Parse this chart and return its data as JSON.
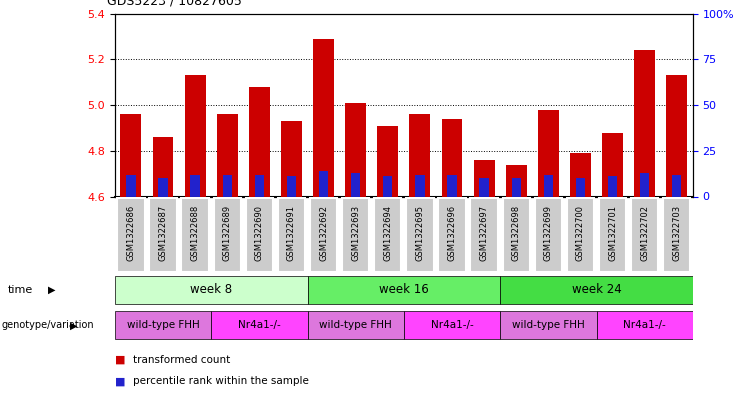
{
  "title": "GDS5223 / 10827605",
  "samples": [
    "GSM1322686",
    "GSM1322687",
    "GSM1322688",
    "GSM1322689",
    "GSM1322690",
    "GSM1322691",
    "GSM1322692",
    "GSM1322693",
    "GSM1322694",
    "GSM1322695",
    "GSM1322696",
    "GSM1322697",
    "GSM1322698",
    "GSM1322699",
    "GSM1322700",
    "GSM1322701",
    "GSM1322702",
    "GSM1322703"
  ],
  "transformed_count": [
    4.96,
    4.86,
    5.13,
    4.96,
    5.08,
    4.93,
    5.29,
    5.01,
    4.91,
    4.96,
    4.94,
    4.76,
    4.74,
    4.98,
    4.79,
    4.88,
    5.24,
    5.13
  ],
  "percentile_rank_pct": [
    12,
    10,
    12,
    12,
    12,
    11,
    14,
    13,
    11,
    12,
    12,
    10,
    10,
    12,
    10,
    11,
    13,
    12
  ],
  "ymin": 4.6,
  "ymax": 5.4,
  "yticks_left": [
    4.6,
    4.8,
    5.0,
    5.2,
    5.4
  ],
  "yticks_right": [
    0,
    25,
    50,
    75,
    100
  ],
  "bar_color": "#cc0000",
  "percentile_color": "#2222cc",
  "background_color": "#ffffff",
  "time_groups": [
    {
      "label": "week 8",
      "start": 0,
      "end": 6,
      "color": "#ccffcc"
    },
    {
      "label": "week 16",
      "start": 6,
      "end": 12,
      "color": "#66ee66"
    },
    {
      "label": "week 24",
      "start": 12,
      "end": 18,
      "color": "#44dd44"
    }
  ],
  "genotype_groups": [
    {
      "label": "wild-type FHH",
      "start": 0,
      "end": 3,
      "color": "#dd77dd"
    },
    {
      "label": "Nr4a1-/-",
      "start": 3,
      "end": 6,
      "color": "#ff44ff"
    },
    {
      "label": "wild-type FHH",
      "start": 6,
      "end": 9,
      "color": "#dd77dd"
    },
    {
      "label": "Nr4a1-/-",
      "start": 9,
      "end": 12,
      "color": "#ff44ff"
    },
    {
      "label": "wild-type FHH",
      "start": 12,
      "end": 15,
      "color": "#dd77dd"
    },
    {
      "label": "Nr4a1-/-",
      "start": 15,
      "end": 18,
      "color": "#ff44ff"
    }
  ],
  "legend_items": [
    {
      "label": "transformed count",
      "color": "#cc0000"
    },
    {
      "label": "percentile rank within the sample",
      "color": "#2222cc"
    }
  ],
  "sample_bg_color": "#cccccc",
  "time_label": "time",
  "genotype_label": "genotype/variation"
}
